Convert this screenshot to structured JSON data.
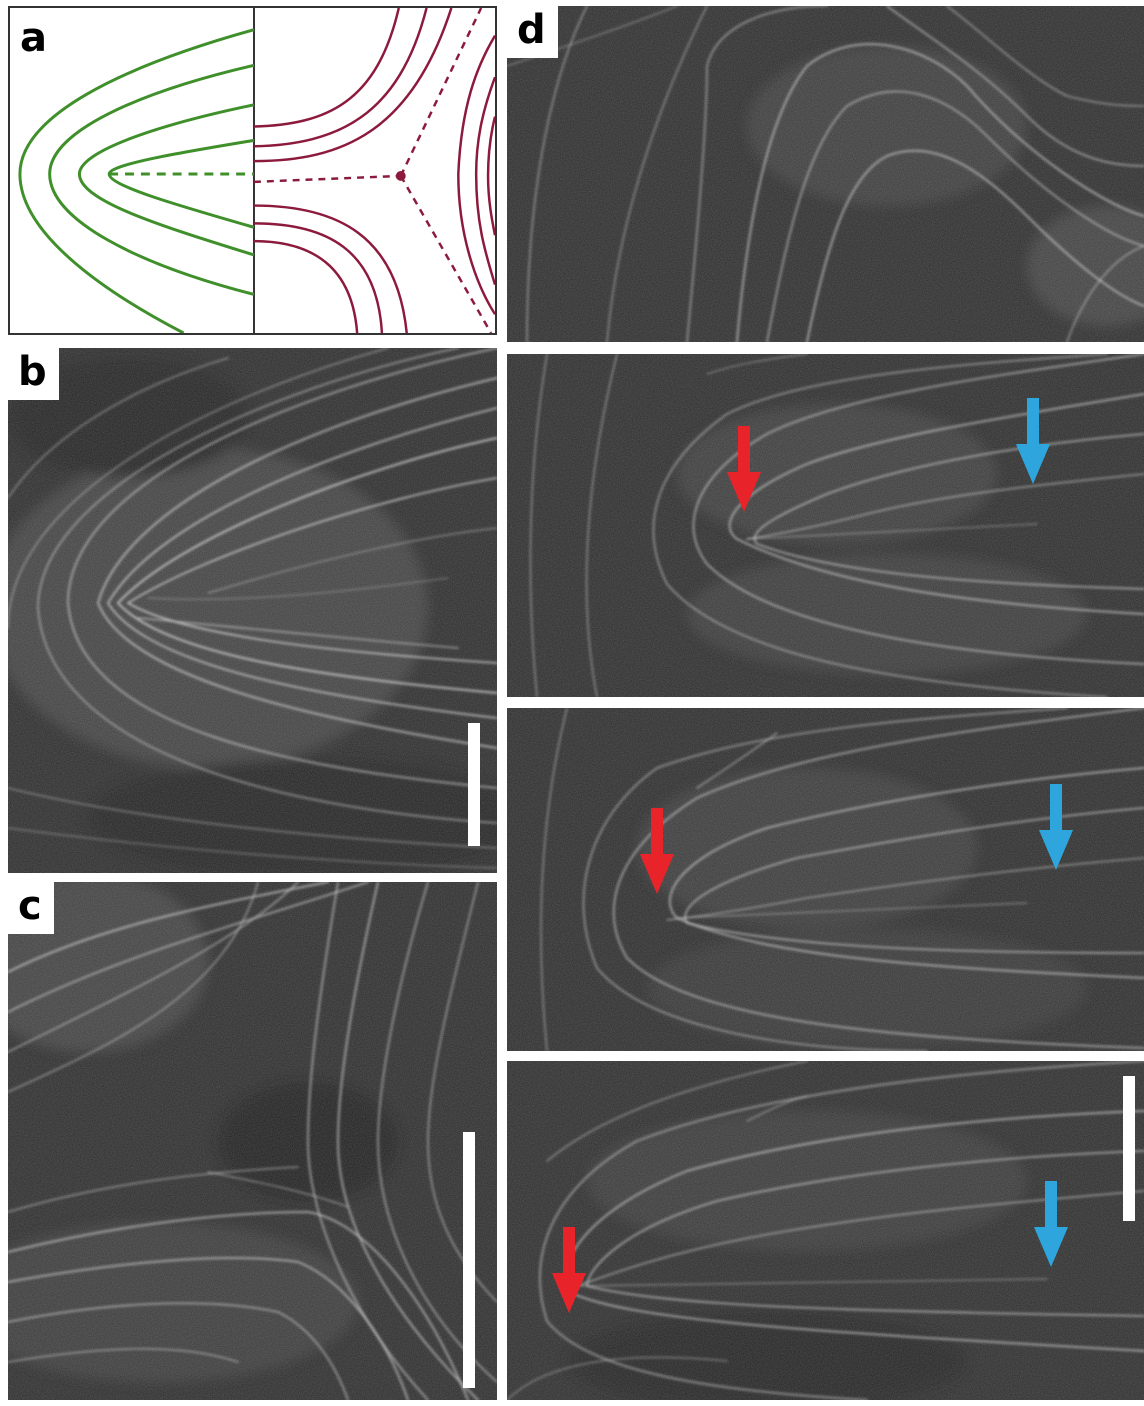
{
  "panels": {
    "a": {
      "label": "a"
    },
    "b": {
      "label": "b"
    },
    "c": {
      "label": "c"
    },
    "d": {
      "label": "d"
    }
  },
  "colors": {
    "bend_defect": "#3f8f2a",
    "trefoil_defect": "#8c1a3c",
    "arrow_red": "#e8242a",
    "arrow_blue": "#2ea6dd",
    "micrograph_background": "#2a2a2a",
    "filament": "#dcdcdc",
    "scale_bar": "#ffffff"
  },
  "icons": {
    "red_arrow": "arrow-down",
    "blue_arrow": "arrow-down"
  }
}
